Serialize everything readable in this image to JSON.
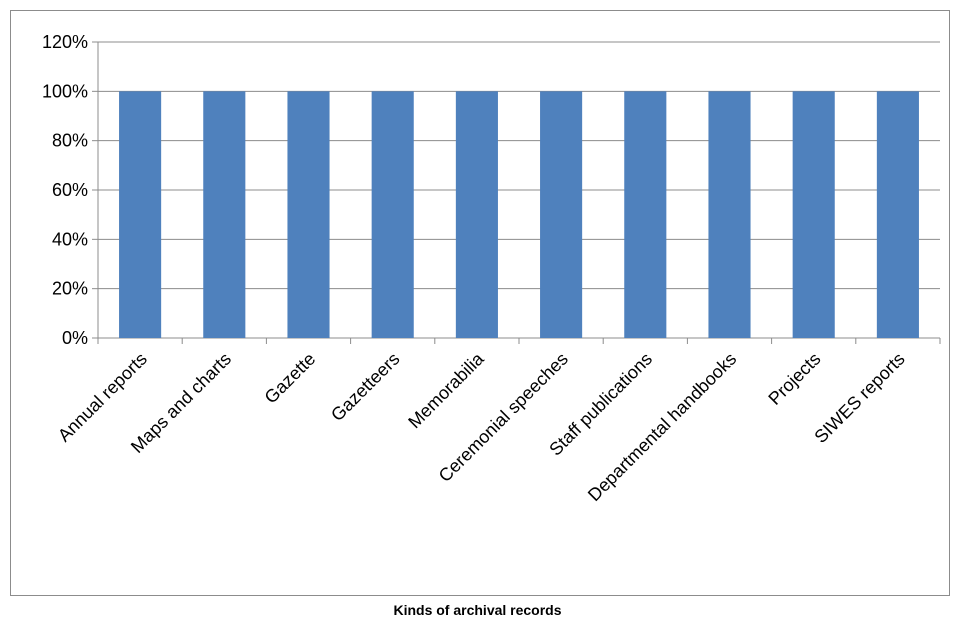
{
  "chart_data": {
    "type": "bar",
    "categories": [
      "Annual reports",
      "Maps and charts",
      "Gazette",
      "Gazetteers",
      "Memorabilia",
      "Ceremonial speeches",
      "Staff publications",
      "Departmental handbooks",
      "Projects",
      "SIWES reports"
    ],
    "values": [
      100,
      100,
      100,
      100,
      100,
      100,
      100,
      100,
      100,
      100
    ],
    "ylim": [
      0,
      120
    ],
    "yticks": [
      "0%",
      "20%",
      "40%",
      "60%",
      "80%",
      "100%",
      "120%"
    ],
    "xlabel": "Kinds of archival records",
    "ylabel": "",
    "grid": true,
    "bar_color": "#4f81bd"
  }
}
